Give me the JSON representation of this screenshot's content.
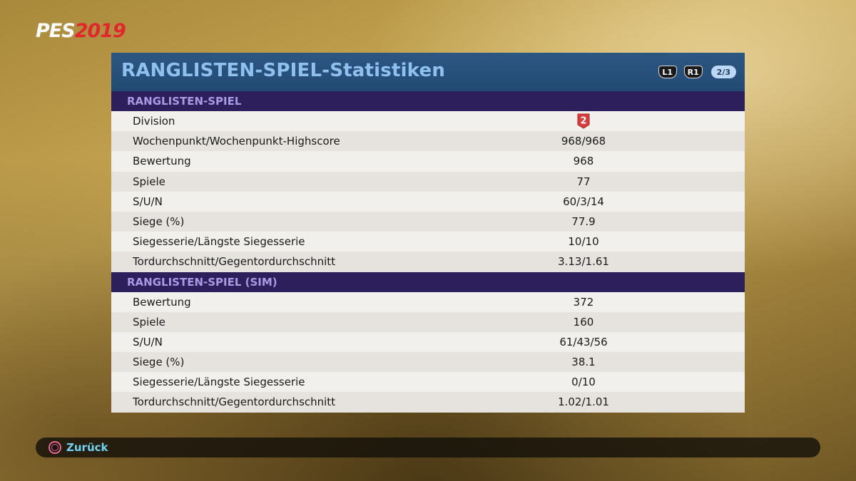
{
  "logo": {
    "pes": "PES",
    "year": "2019"
  },
  "panel": {
    "title": "RANGLISTEN-SPIEL-Statistiken",
    "nav": {
      "left_button": "L1",
      "right_button": "R1",
      "page": "2/3"
    }
  },
  "sections": [
    {
      "header": "RANGLISTEN-SPIEL",
      "rows": [
        {
          "label": "Division",
          "value": "2"
        },
        {
          "label": "Wochenpunkt/Wochenpunkt-Highscore",
          "value": "968/968"
        },
        {
          "label": "Bewertung",
          "value": "968"
        },
        {
          "label": "Spiele",
          "value": "77"
        },
        {
          "label": "S/U/N",
          "value": "60/3/14"
        },
        {
          "label": "Siege (%)",
          "value": "77.9"
        },
        {
          "label": "Siegesserie/Längste Siegesserie",
          "value": "10/10"
        },
        {
          "label": "Tordurchschnitt/Gegentordurchschnitt",
          "value": "3.13/1.61"
        }
      ]
    },
    {
      "header": "RANGLISTEN-SPIEL (SIM)",
      "rows": [
        {
          "label": "Bewertung",
          "value": "372"
        },
        {
          "label": "Spiele",
          "value": "160"
        },
        {
          "label": "S/U/N",
          "value": "61/43/56"
        },
        {
          "label": "Siege (%)",
          "value": "38.1"
        },
        {
          "label": "Siegesserie/Längste Siegesserie",
          "value": "0/10"
        },
        {
          "label": "Tordurchschnitt/Gegentordurchschnitt",
          "value": "1.02/1.01"
        }
      ]
    }
  ],
  "footer": {
    "back_label": "Zurück",
    "back_icon": "circle-button-icon"
  },
  "colors": {
    "division_badge": "#d93a3a",
    "title": "#8fc0ef",
    "section_header_bg": "#2d1f5c"
  }
}
